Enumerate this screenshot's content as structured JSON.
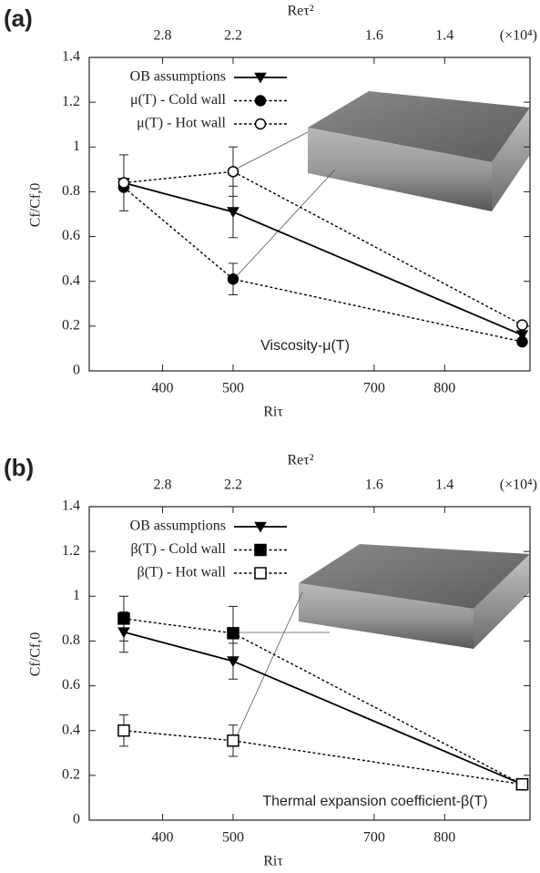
{
  "chart_data": [
    {
      "type": "line",
      "panel_label": "(a)",
      "annotation": "Viscosity-μ(T)",
      "xlabel": "Riτ",
      "x2label": "Reτ²",
      "x2_multiplier": "(×10⁴)",
      "ylabel": "Cf/Cf,0",
      "x": [
        345,
        500,
        910
      ],
      "xlim": [
        296,
        921
      ],
      "xticks": [
        400,
        500,
        700,
        800
      ],
      "x2ticks": [
        {
          "value": 400,
          "label": "2.8"
        },
        {
          "value": 500,
          "label": "2.2"
        },
        {
          "value": 700,
          "label": "1.6"
        },
        {
          "value": 800,
          "label": "1.4"
        }
      ],
      "ylim": [
        0,
        1.4
      ],
      "yticks": [
        0,
        0.2,
        0.4,
        0.6,
        0.8,
        1,
        1.2,
        1.4
      ],
      "legend": "upper left",
      "series": [
        {
          "name": "OB assumptions",
          "color": "#000000",
          "marker": "triangle-down",
          "filled": true,
          "dashed": false,
          "values": [
            0.84,
            0.71,
            0.16
          ],
          "errors": [
            0.125,
            0.115,
            null
          ]
        },
        {
          "name": "μ(T) - Cold wall",
          "color": "#000000",
          "marker": "circle",
          "filled": true,
          "dashed": true,
          "values": [
            0.82,
            0.41,
            0.13
          ],
          "errors": [
            null,
            0.07,
            null
          ]
        },
        {
          "name": "μ(T) - Hot wall",
          "color": "#000000",
          "marker": "circle",
          "filled": false,
          "dashed": true,
          "values": [
            0.84,
            0.89,
            0.205
          ],
          "errors": [
            null,
            0.11,
            null
          ]
        }
      ]
    },
    {
      "type": "line",
      "panel_label": "(b)",
      "annotation": "Thermal expansion coefficient-β(T)",
      "xlabel": "Riτ",
      "x2label": "Reτ²",
      "x2_multiplier": "(×10⁴)",
      "ylabel": "Cf/Cf,0",
      "x": [
        345,
        500,
        910
      ],
      "xlim": [
        296,
        921
      ],
      "xticks": [
        400,
        500,
        700,
        800
      ],
      "x2ticks": [
        {
          "value": 400,
          "label": "2.8"
        },
        {
          "value": 500,
          "label": "2.2"
        },
        {
          "value": 700,
          "label": "1.6"
        },
        {
          "value": 800,
          "label": "1.4"
        }
      ],
      "ylim": [
        0,
        1.4
      ],
      "yticks": [
        0,
        0.2,
        0.4,
        0.6,
        0.8,
        1,
        1.2,
        1.4
      ],
      "legend": "upper left",
      "series": [
        {
          "name": "OB assumptions",
          "color": "#000000",
          "marker": "triangle-down",
          "filled": true,
          "dashed": false,
          "values": [
            0.84,
            0.71,
            0.16
          ],
          "errors": [
            0.09,
            0.08,
            null
          ]
        },
        {
          "name": "β(T) - Cold wall",
          "color": "#000000",
          "marker": "square",
          "filled": true,
          "dashed": true,
          "values": [
            0.9,
            0.835,
            0.16
          ],
          "errors": [
            0.1,
            0.12,
            null
          ]
        },
        {
          "name": "β(T) - Hot wall",
          "color": "#000000",
          "marker": "square",
          "filled": false,
          "dashed": true,
          "values": [
            0.4,
            0.355,
            0.16
          ],
          "errors": [
            0.07,
            0.07,
            null
          ]
        }
      ]
    }
  ]
}
